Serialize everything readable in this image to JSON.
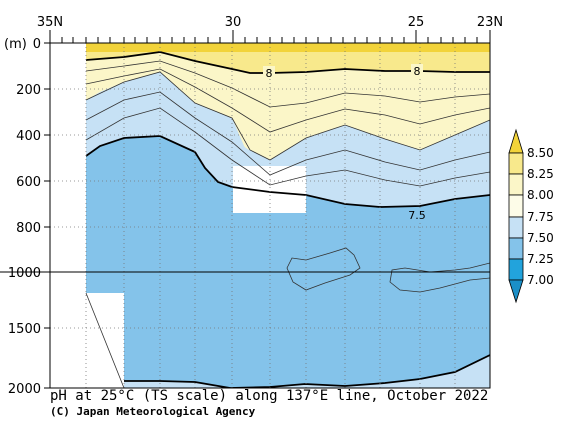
{
  "chart_data": {
    "type": "contour-section",
    "title": "pH at 25°C (TS scale) along 137°E line, October 2022",
    "credit": "(C) Japan Meteorological Agency",
    "x_axis": {
      "label_ticks": [
        "35N",
        "30",
        "25",
        "23N"
      ],
      "range_lat": [
        35,
        23
      ]
    },
    "y_axis": {
      "unit": "(m)",
      "ticks_upper": [
        "0",
        "200",
        "400",
        "600",
        "800",
        "1000"
      ],
      "ticks_lower": [
        "1500",
        "2000"
      ],
      "range_upper": [
        0,
        1000
      ],
      "range_lower": [
        1000,
        2000
      ]
    },
    "colorbar": {
      "labels": [
        "8.50",
        "8.25",
        "8.00",
        "7.75",
        "7.50",
        "7.25",
        "7.00"
      ],
      "colors": [
        "#f2d33a",
        "#f8e98c",
        "#fbf6c8",
        "#fdfce8",
        "#c6e1f5",
        "#84c3ea",
        "#22a3dc"
      ]
    },
    "contour_labels": [
      "8",
      "8",
      "7.5"
    ],
    "fill_colors": {
      "ph_above_8_25": "#f2d33a",
      "ph_8_00_8_25": "#f8e98c",
      "ph_7_75_8_00": "#fbf6c8",
      "ph_7_50_7_75": "#c6e1f5",
      "ph_7_25_7_50": "#84c3ea"
    }
  }
}
